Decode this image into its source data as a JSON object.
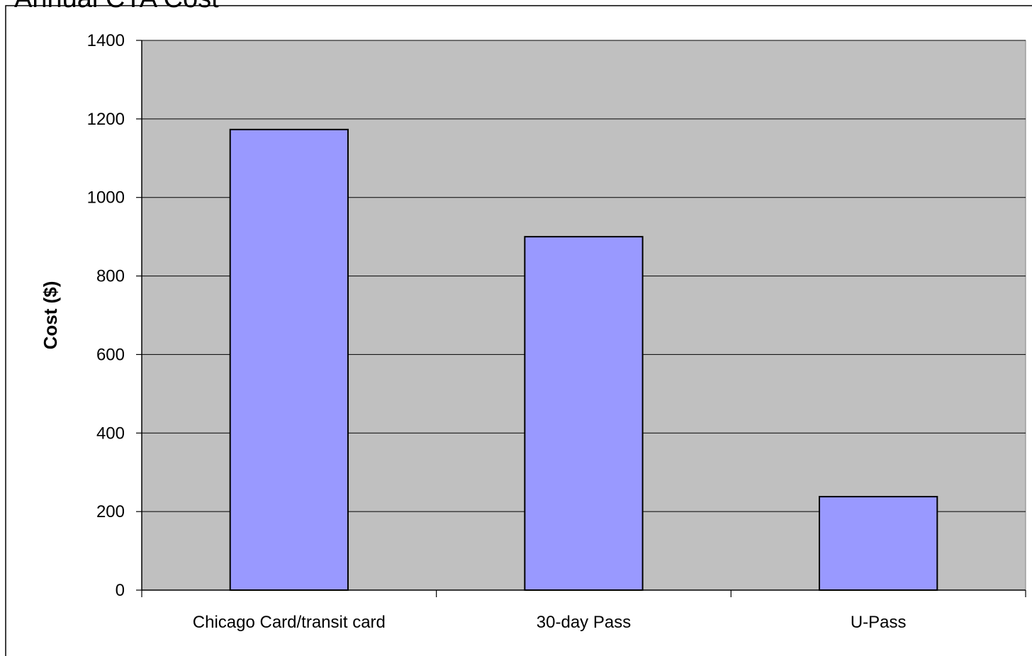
{
  "chart_data": {
    "type": "bar",
    "title": "Annual CTA Cost",
    "xlabel": "",
    "ylabel": "Cost ($)",
    "categories": [
      "Chicago Card/transit card",
      "30-day Pass",
      "U-Pass"
    ],
    "values": [
      1173,
      900,
      238
    ],
    "ylim": [
      0,
      1400
    ],
    "yticks": [
      0,
      200,
      400,
      600,
      800,
      1000,
      1200,
      1400
    ],
    "grid": true,
    "legend": "none",
    "colors": {
      "bar": "#9999ff",
      "plot_background": "#c0c0c0",
      "gridline": "#000000"
    }
  }
}
